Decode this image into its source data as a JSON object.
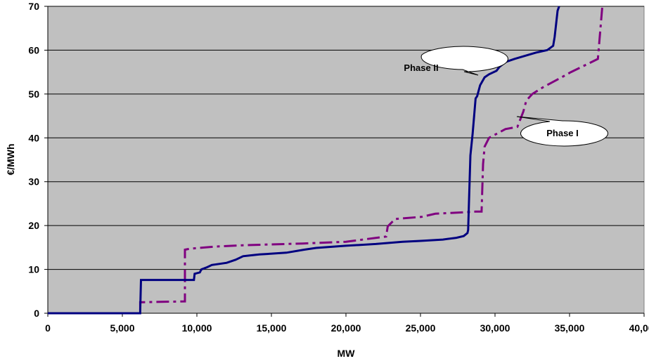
{
  "chart_data": {
    "type": "line",
    "title": "",
    "xlabel": "MW",
    "ylabel": "€/MWh",
    "xlim": [
      0,
      40000
    ],
    "ylim": [
      0,
      70
    ],
    "x_ticks": [
      0,
      5000,
      10000,
      15000,
      20000,
      25000,
      30000,
      35000,
      40000
    ],
    "x_tick_labels": [
      "0",
      "5,000",
      "10,000",
      "15,000",
      "20,000",
      "25,000",
      "30,000",
      "35,000",
      "40,000"
    ],
    "y_ticks": [
      0,
      10,
      20,
      30,
      40,
      50,
      60,
      70
    ],
    "y_tick_labels": [
      "0",
      "10",
      "20",
      "30",
      "40",
      "50",
      "60",
      "70"
    ],
    "grid": "horizontal",
    "plot_background": "#c0c0c0",
    "series": [
      {
        "name": "Phase II",
        "color": "#000080",
        "style": "solid",
        "points": [
          [
            0,
            0
          ],
          [
            6200,
            0
          ],
          [
            6200,
            0.5
          ],
          [
            6250,
            7.6
          ],
          [
            9800,
            7.6
          ],
          [
            9850,
            9
          ],
          [
            10200,
            9.3
          ],
          [
            10300,
            10
          ],
          [
            10700,
            10.5
          ],
          [
            11000,
            11
          ],
          [
            12000,
            11.5
          ],
          [
            12600,
            12.2
          ],
          [
            13100,
            13
          ],
          [
            13600,
            13.2
          ],
          [
            14200,
            13.4
          ],
          [
            16000,
            13.8
          ],
          [
            17200,
            14.5
          ],
          [
            18000,
            14.9
          ],
          [
            20000,
            15.4
          ],
          [
            22000,
            15.8
          ],
          [
            23800,
            16.3
          ],
          [
            25000,
            16.5
          ],
          [
            26500,
            16.8
          ],
          [
            27400,
            17.2
          ],
          [
            27900,
            17.6
          ],
          [
            28150,
            18.3
          ],
          [
            28200,
            19
          ],
          [
            28250,
            25
          ],
          [
            28350,
            36
          ],
          [
            28500,
            41
          ],
          [
            28700,
            49
          ],
          [
            28800,
            49.5
          ],
          [
            29000,
            52
          ],
          [
            29300,
            53.8
          ],
          [
            29600,
            54.5
          ],
          [
            30100,
            55.3
          ],
          [
            30300,
            56.2
          ],
          [
            30700,
            57.3
          ],
          [
            31300,
            58
          ],
          [
            32300,
            59
          ],
          [
            32800,
            59.5
          ],
          [
            33500,
            60
          ],
          [
            33900,
            61
          ],
          [
            34000,
            63
          ],
          [
            34100,
            66
          ],
          [
            34200,
            69
          ],
          [
            34300,
            70
          ]
        ]
      },
      {
        "name": "Phase I",
        "color": "#800080",
        "style": "dashdot",
        "points": [
          [
            0,
            0
          ],
          [
            6200,
            0
          ],
          [
            6200,
            2.5
          ],
          [
            9200,
            2.7
          ],
          [
            9200,
            14.5
          ],
          [
            9500,
            14.7
          ],
          [
            11200,
            15.2
          ],
          [
            13100,
            15.5
          ],
          [
            17100,
            15.9
          ],
          [
            20000,
            16.3
          ],
          [
            22700,
            17.5
          ],
          [
            22800,
            19.8
          ],
          [
            23300,
            21.5
          ],
          [
            25100,
            22
          ],
          [
            26000,
            22.7
          ],
          [
            27800,
            23
          ],
          [
            28700,
            23.2
          ],
          [
            29100,
            23.2
          ],
          [
            29200,
            34
          ],
          [
            29300,
            38
          ],
          [
            29600,
            40
          ],
          [
            30700,
            42
          ],
          [
            31500,
            42.5
          ],
          [
            31900,
            46
          ],
          [
            32100,
            48.5
          ],
          [
            32500,
            50
          ],
          [
            33200,
            51.5
          ],
          [
            34300,
            53.5
          ],
          [
            35100,
            55
          ],
          [
            36300,
            57
          ],
          [
            36900,
            58
          ],
          [
            37000,
            62
          ],
          [
            37100,
            66
          ],
          [
            37200,
            70
          ]
        ]
      }
    ],
    "annotations": [
      {
        "text": "Phase II",
        "series": "Phase II"
      },
      {
        "text": "Phase I",
        "series": "Phase I"
      }
    ]
  }
}
